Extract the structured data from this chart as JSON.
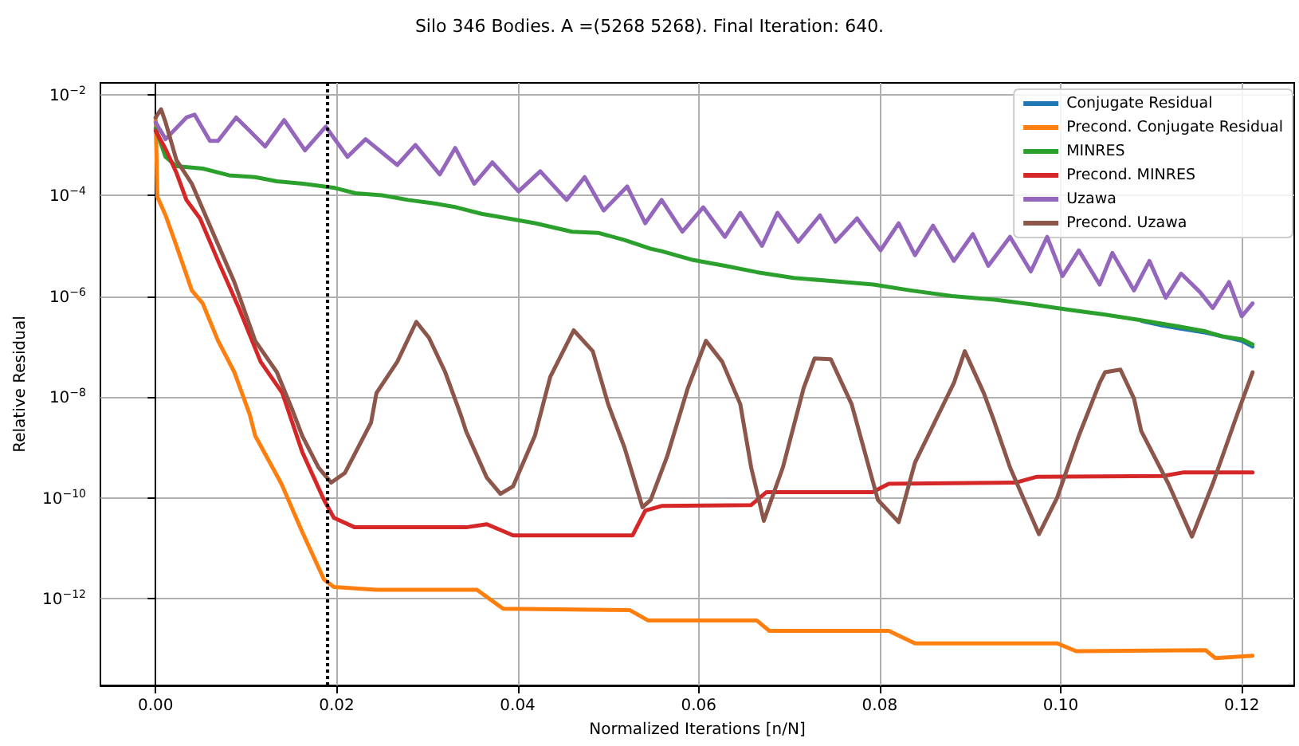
{
  "chart_data": {
    "type": "line",
    "title": "Silo 346 Bodies. A =(5268 5268). Final Iteration: 640.",
    "xlabel": "Normalized Iterations [n/N]",
    "ylabel": "Relative Residual",
    "log": "y",
    "grid": true,
    "legend": "top right",
    "line_style": "solid",
    "marker": "none",
    "xlim": [
      -0.0061,
      0.1258
    ],
    "xticks": [
      {
        "value": 0,
        "label": "0.00"
      },
      0.02,
      0.04,
      0.06,
      0.08,
      {
        "value": 0.1,
        "label": "0.10"
      },
      0.12
    ],
    "ylim": [
      1.9e-14,
      0.017
    ],
    "yticks": [
      {
        "value": 0.01,
        "label": "10$^{−2}$"
      },
      {
        "value": 0.0001,
        "label": "10$^{−4}$"
      },
      {
        "value": 1e-06,
        "label": "10$^{−6}$"
      },
      {
        "value": 1e-08,
        "label": "10$^{−8}$"
      },
      {
        "value": 1e-10,
        "label": "10$^{−10}$"
      },
      {
        "value": 1e-12,
        "label": "10$^{−12}$"
      }
    ],
    "ref_lines": [
      {
        "axis": "x",
        "value": 0.019,
        "color": "#000000",
        "line_style": "dotted"
      }
    ],
    "series": [
      {
        "name": "Conjugate Residual",
        "color": "#1f77b4",
        "x": [
          0.109,
          0.1113,
          0.1131,
          0.116,
          0.1178,
          0.12,
          0.1212
        ],
        "values": [
          3.2e-07,
          2.6e-07,
          2.3e-07,
          1.9e-07,
          1.6e-07,
          1.3e-07,
          1e-07
        ]
      },
      {
        "name": "Precond. Conjugate Residual",
        "color": "#ff7f0e",
        "x": [
          0,
          0.0002,
          0.0011,
          0.0023,
          0.004,
          0.0052,
          0.0069,
          0.0087,
          0.0104,
          0.011,
          0.0139,
          0.0162,
          0.0186,
          0.0197,
          0.0244,
          0.0355,
          0.0384,
          0.0524,
          0.0544,
          0.0664,
          0.0678,
          0.081,
          0.0839,
          0.0996,
          0.1017,
          0.116,
          0.1171,
          0.1212
        ],
        "values": [
          0.0035,
          9.3e-05,
          4e-05,
          1e-05,
          1.3e-06,
          7.2e-07,
          1.3e-07,
          3.1e-08,
          4.5e-09,
          1.7e-09,
          1.9e-10,
          2.1e-11,
          2.4e-12,
          1.7e-12,
          1.5e-12,
          1.5e-12,
          6.3e-13,
          5.9e-13,
          3.7e-13,
          3.7e-13,
          2.3e-13,
          2.3e-13,
          1.3e-13,
          1.3e-13,
          9.1e-14,
          9.5e-14,
          6.6e-14,
          7.4e-14
        ]
      },
      {
        "name": "MINRES",
        "color": "#2ca02c",
        "x": [
          0,
          0.0011,
          0.0023,
          0.0052,
          0.0081,
          0.011,
          0.0134,
          0.0163,
          0.0198,
          0.0221,
          0.025,
          0.0279,
          0.0308,
          0.0332,
          0.036,
          0.0389,
          0.0419,
          0.046,
          0.0489,
          0.0518,
          0.0547,
          0.0559,
          0.0594,
          0.0629,
          0.0664,
          0.0705,
          0.0746,
          0.0793,
          0.0834,
          0.088,
          0.0927,
          0.0967,
          0.1008,
          0.1049,
          0.109,
          0.1131,
          0.116,
          0.1178,
          0.12,
          0.1212
        ],
        "values": [
          0.0021,
          0.00058,
          0.00038,
          0.00034,
          0.00025,
          0.00023,
          0.00019,
          0.00017,
          0.00014,
          0.00011,
          0.0001,
          8.1e-05,
          6.9e-05,
          5.8e-05,
          4.3e-05,
          3.5e-05,
          2.8e-05,
          1.9e-05,
          1.8e-05,
          1.3e-05,
          8.7e-06,
          7.8e-06,
          5.2e-06,
          4e-06,
          3e-06,
          2.3e-06,
          2e-06,
          1.7e-06,
          1.3e-06,
          1e-06,
          8.5e-07,
          6.9e-07,
          5.4e-07,
          4.3e-07,
          3.3e-07,
          2.5e-07,
          2e-07,
          1.6e-07,
          1.4e-07,
          1.1e-07
        ]
      },
      {
        "name": "Precond. MINRES",
        "color": "#d62728",
        "x": [
          0,
          0.0011,
          0.0023,
          0.0034,
          0.0049,
          0.0069,
          0.0092,
          0.0116,
          0.014,
          0.0162,
          0.0186,
          0.0197,
          0.022,
          0.0343,
          0.0366,
          0.0395,
          0.0527,
          0.0541,
          0.0559,
          0.0658,
          0.0675,
          0.0792,
          0.081,
          0.095,
          0.0973,
          0.1113,
          0.1136,
          0.1212
        ],
        "values": [
          0.0019,
          0.00083,
          0.00028,
          8.1e-05,
          3.5e-05,
          5e-06,
          5.8e-07,
          5e-08,
          1.2e-08,
          8.1e-10,
          9.1e-11,
          4e-11,
          2.6e-11,
          2.6e-11,
          3e-11,
          1.8e-11,
          1.8e-11,
          5.6e-11,
          6.9e-11,
          7.2e-11,
          1.3e-10,
          1.3e-10,
          1.9e-10,
          2e-10,
          2.6e-10,
          2.7e-10,
          3.2e-10,
          3.2e-10
        ]
      },
      {
        "name": "Uzawa",
        "color": "#9467bd",
        "x": [
          0,
          0.0011,
          0.0034,
          0.0043,
          0.006,
          0.0069,
          0.0089,
          0.0104,
          0.0121,
          0.0142,
          0.0165,
          0.0188,
          0.0212,
          0.0232,
          0.0267,
          0.0287,
          0.0314,
          0.0331,
          0.0352,
          0.0372,
          0.0401,
          0.0425,
          0.0454,
          0.0474,
          0.0495,
          0.0521,
          0.0541,
          0.0559,
          0.0582,
          0.0605,
          0.0629,
          0.0646,
          0.067,
          0.0687,
          0.071,
          0.0734,
          0.0751,
          0.0775,
          0.0801,
          0.0821,
          0.0839,
          0.0859,
          0.0882,
          0.0903,
          0.092,
          0.0944,
          0.0967,
          0.0985,
          0.1002,
          0.102,
          0.1043,
          0.1057,
          0.1081,
          0.1098,
          0.1116,
          0.1133,
          0.1154,
          0.1168,
          0.1186,
          0.12,
          0.1212
        ],
        "values": [
          0.0028,
          0.0013,
          0.0035,
          0.004,
          0.0012,
          0.0012,
          0.0035,
          0.0019,
          0.00093,
          0.0031,
          0.00078,
          0.0023,
          0.00058,
          0.0013,
          0.0004,
          0.001,
          0.00026,
          0.00087,
          0.00017,
          0.00045,
          0.00012,
          0.0003,
          8.1e-05,
          0.00023,
          5e-05,
          0.00015,
          2.8e-05,
          8.1e-05,
          1.9e-05,
          5.8e-05,
          1.5e-05,
          4.5e-05,
          1e-05,
          4.5e-05,
          1.2e-05,
          4e-05,
          1.2e-05,
          3.5e-05,
          8.1e-06,
          2.8e-05,
          6.5e-06,
          2.5e-05,
          5e-06,
          1.7e-05,
          4e-06,
          1.5e-05,
          3.1e-06,
          1.5e-05,
          2.5e-06,
          8.1e-06,
          1.7e-06,
          7.2e-06,
          1.3e-06,
          5e-06,
          9.3e-07,
          2.8e-06,
          1.2e-06,
          5.8e-07,
          1.9e-06,
          4e-07,
          7.2e-07
        ]
      },
      {
        "name": "Precond. Uzawa",
        "color": "#8c564b",
        "x": [
          0,
          0.0006,
          0.0011,
          0.0023,
          0.004,
          0.0064,
          0.0087,
          0.011,
          0.0134,
          0.0151,
          0.0162,
          0.018,
          0.0194,
          0.0209,
          0.0238,
          0.0244,
          0.0267,
          0.0288,
          0.0302,
          0.032,
          0.0337,
          0.0343,
          0.0366,
          0.0381,
          0.0395,
          0.0419,
          0.0436,
          0.0462,
          0.0483,
          0.05,
          0.0518,
          0.0538,
          0.0547,
          0.0565,
          0.0588,
          0.0608,
          0.0626,
          0.0646,
          0.0658,
          0.0672,
          0.0693,
          0.0716,
          0.0728,
          0.0746,
          0.0769,
          0.0798,
          0.0821,
          0.0839,
          0.0862,
          0.0882,
          0.0894,
          0.0915,
          0.0926,
          0.0944,
          0.0976,
          0.0996,
          0.102,
          0.1043,
          0.1049,
          0.1066,
          0.1081,
          0.1089,
          0.1119,
          0.1145,
          0.1168,
          0.1195,
          0.1212
        ],
        "values": [
          0.0035,
          0.0051,
          0.0028,
          0.0005,
          0.00017,
          1.7e-05,
          1.9e-06,
          1.3e-07,
          3.1e-08,
          5.6e-09,
          1.7e-09,
          4e-10,
          2e-10,
          3.1e-10,
          3.1e-09,
          1.2e-08,
          5e-08,
          3.1e-07,
          1.5e-07,
          3.1e-08,
          4.5e-09,
          2.1e-09,
          2.5e-10,
          1.2e-10,
          1.7e-10,
          1.7e-09,
          2.5e-08,
          2.1e-07,
          8.1e-08,
          7.2e-09,
          1e-09,
          6.5e-11,
          9.1e-11,
          6.5e-10,
          1.5e-08,
          1.3e-07,
          5e-08,
          7.2e-09,
          4e-10,
          3.5e-11,
          4e-10,
          1.5e-08,
          5.8e-08,
          5.6e-08,
          7.2e-09,
          9.1e-11,
          3.3e-11,
          5e-10,
          3.5e-09,
          1.9e-08,
          8.1e-08,
          1.2e-08,
          3.5e-09,
          4e-10,
          1.9e-11,
          1e-10,
          1.7e-09,
          1.9e-08,
          3.1e-08,
          3.5e-08,
          9.3e-09,
          2.1e-09,
          1.9e-10,
          1.7e-11,
          1.9e-10,
          4.5e-09,
          3.1e-08
        ]
      }
    ]
  }
}
